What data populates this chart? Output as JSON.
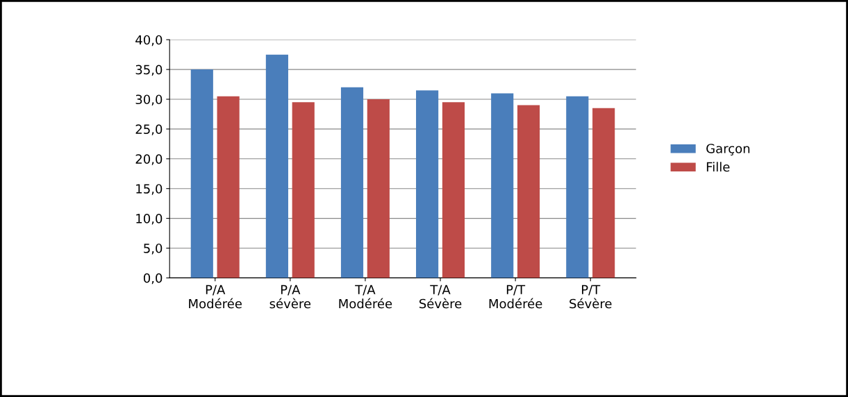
{
  "chart_data": {
    "type": "bar",
    "categories": [
      "P/A\nModérée",
      "P/A\nsévère",
      "T/A\nModérée",
      "T/A\nSévère",
      "P/T\nModérée",
      "P/T\nSévère"
    ],
    "series": [
      {
        "name": "Garçon",
        "color": "#4a7ebb",
        "values": [
          35.0,
          37.5,
          32.0,
          31.5,
          31.0,
          30.5
        ]
      },
      {
        "name": "Fille",
        "color": "#be4b48",
        "values": [
          30.5,
          29.5,
          30.0,
          29.5,
          29.0,
          28.5
        ]
      }
    ],
    "ylim": [
      0,
      40
    ],
    "yticks": [
      {
        "value": 0,
        "label": "0,0"
      },
      {
        "value": 5,
        "label": "5,0"
      },
      {
        "value": 10,
        "label": "10,0"
      },
      {
        "value": 15,
        "label": "15,0"
      },
      {
        "value": 20,
        "label": "20,0"
      },
      {
        "value": 25,
        "label": "25,0"
      },
      {
        "value": 30,
        "label": "30,0"
      },
      {
        "value": 35,
        "label": "35,0"
      },
      {
        "value": 40,
        "label": "40,0"
      }
    ],
    "grid": "y",
    "legend": "right"
  }
}
